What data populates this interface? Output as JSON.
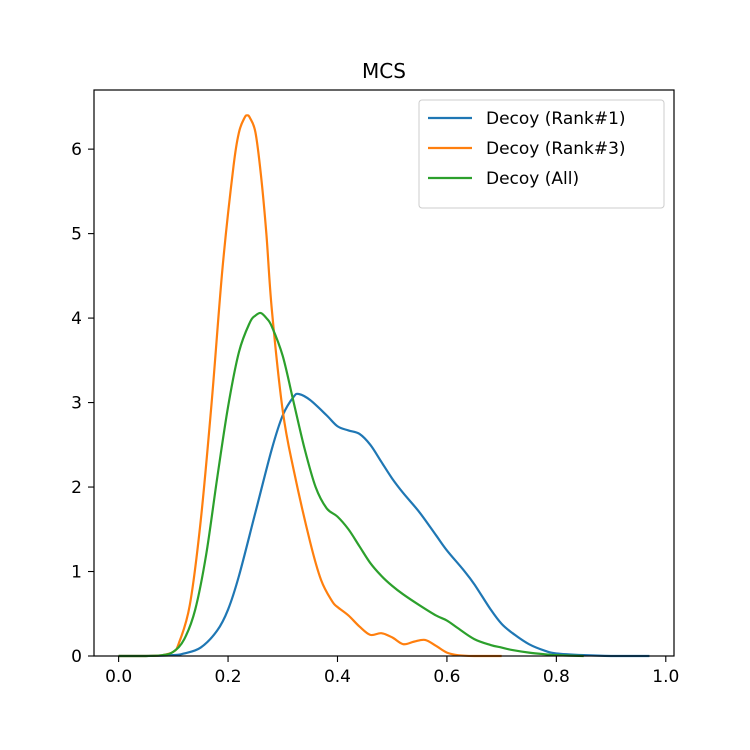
{
  "chart_data": {
    "type": "line",
    "title": "MCS",
    "xlabel": "",
    "ylabel": "",
    "xlim": [
      -0.045,
      1.015
    ],
    "ylim": [
      0,
      6.7
    ],
    "xticks": [
      0.0,
      0.2,
      0.4,
      0.6,
      0.8,
      1.0
    ],
    "xtick_labels": [
      "0.0",
      "0.2",
      "0.4",
      "0.6",
      "0.8",
      "1.0"
    ],
    "yticks": [
      0,
      1,
      2,
      3,
      4,
      5,
      6
    ],
    "ytick_labels": [
      "0",
      "1",
      "2",
      "3",
      "4",
      "5",
      "6"
    ],
    "grid": false,
    "legend_position": "top-right",
    "series": [
      {
        "name": "Decoy (Rank#1)",
        "color": "#1f77b4",
        "x": [
          0.0,
          0.05,
          0.1,
          0.12,
          0.15,
          0.18,
          0.2,
          0.22,
          0.25,
          0.28,
          0.3,
          0.32,
          0.33,
          0.35,
          0.38,
          0.4,
          0.42,
          0.44,
          0.46,
          0.48,
          0.5,
          0.52,
          0.55,
          0.58,
          0.6,
          0.63,
          0.65,
          0.68,
          0.7,
          0.72,
          0.75,
          0.78,
          0.8,
          0.85,
          0.9,
          0.97
        ],
        "y": [
          0.0,
          0.0,
          0.01,
          0.03,
          0.1,
          0.3,
          0.55,
          0.95,
          1.7,
          2.45,
          2.85,
          3.07,
          3.1,
          3.03,
          2.85,
          2.72,
          2.67,
          2.63,
          2.5,
          2.3,
          2.1,
          1.93,
          1.7,
          1.43,
          1.25,
          1.02,
          0.85,
          0.55,
          0.38,
          0.27,
          0.14,
          0.06,
          0.03,
          0.01,
          0.0,
          0.0
        ]
      },
      {
        "name": "Decoy (Rank#3)",
        "color": "#ff7f0e",
        "x": [
          0.0,
          0.05,
          0.08,
          0.1,
          0.11,
          0.13,
          0.15,
          0.17,
          0.19,
          0.21,
          0.22,
          0.23,
          0.235,
          0.24,
          0.25,
          0.26,
          0.27,
          0.28,
          0.3,
          0.32,
          0.35,
          0.37,
          0.39,
          0.4,
          0.42,
          0.44,
          0.46,
          0.48,
          0.5,
          0.52,
          0.54,
          0.56,
          0.58,
          0.6,
          0.62,
          0.65,
          0.7
        ],
        "y": [
          0.0,
          0.0,
          0.01,
          0.05,
          0.15,
          0.6,
          1.6,
          3.0,
          4.6,
          5.8,
          6.2,
          6.37,
          6.4,
          6.37,
          6.2,
          5.7,
          5.0,
          4.1,
          2.9,
          2.2,
          1.35,
          0.9,
          0.65,
          0.58,
          0.48,
          0.35,
          0.25,
          0.27,
          0.22,
          0.14,
          0.17,
          0.19,
          0.12,
          0.04,
          0.01,
          0.0,
          0.0
        ]
      },
      {
        "name": "Decoy (All)",
        "color": "#2ca02c",
        "x": [
          0.0,
          0.05,
          0.08,
          0.1,
          0.12,
          0.14,
          0.16,
          0.18,
          0.2,
          0.22,
          0.24,
          0.25,
          0.26,
          0.27,
          0.28,
          0.3,
          0.32,
          0.34,
          0.36,
          0.38,
          0.4,
          0.42,
          0.44,
          0.46,
          0.48,
          0.5,
          0.52,
          0.55,
          0.58,
          0.6,
          0.62,
          0.65,
          0.68,
          0.7,
          0.72,
          0.75,
          0.78,
          0.8,
          0.85
        ],
        "y": [
          0.0,
          0.0,
          0.01,
          0.05,
          0.2,
          0.55,
          1.2,
          2.1,
          2.95,
          3.6,
          3.95,
          4.03,
          4.06,
          4.0,
          3.9,
          3.55,
          3.0,
          2.45,
          2.0,
          1.75,
          1.65,
          1.5,
          1.3,
          1.1,
          0.95,
          0.83,
          0.73,
          0.6,
          0.48,
          0.42,
          0.33,
          0.2,
          0.13,
          0.1,
          0.07,
          0.04,
          0.02,
          0.01,
          0.0
        ]
      }
    ]
  }
}
